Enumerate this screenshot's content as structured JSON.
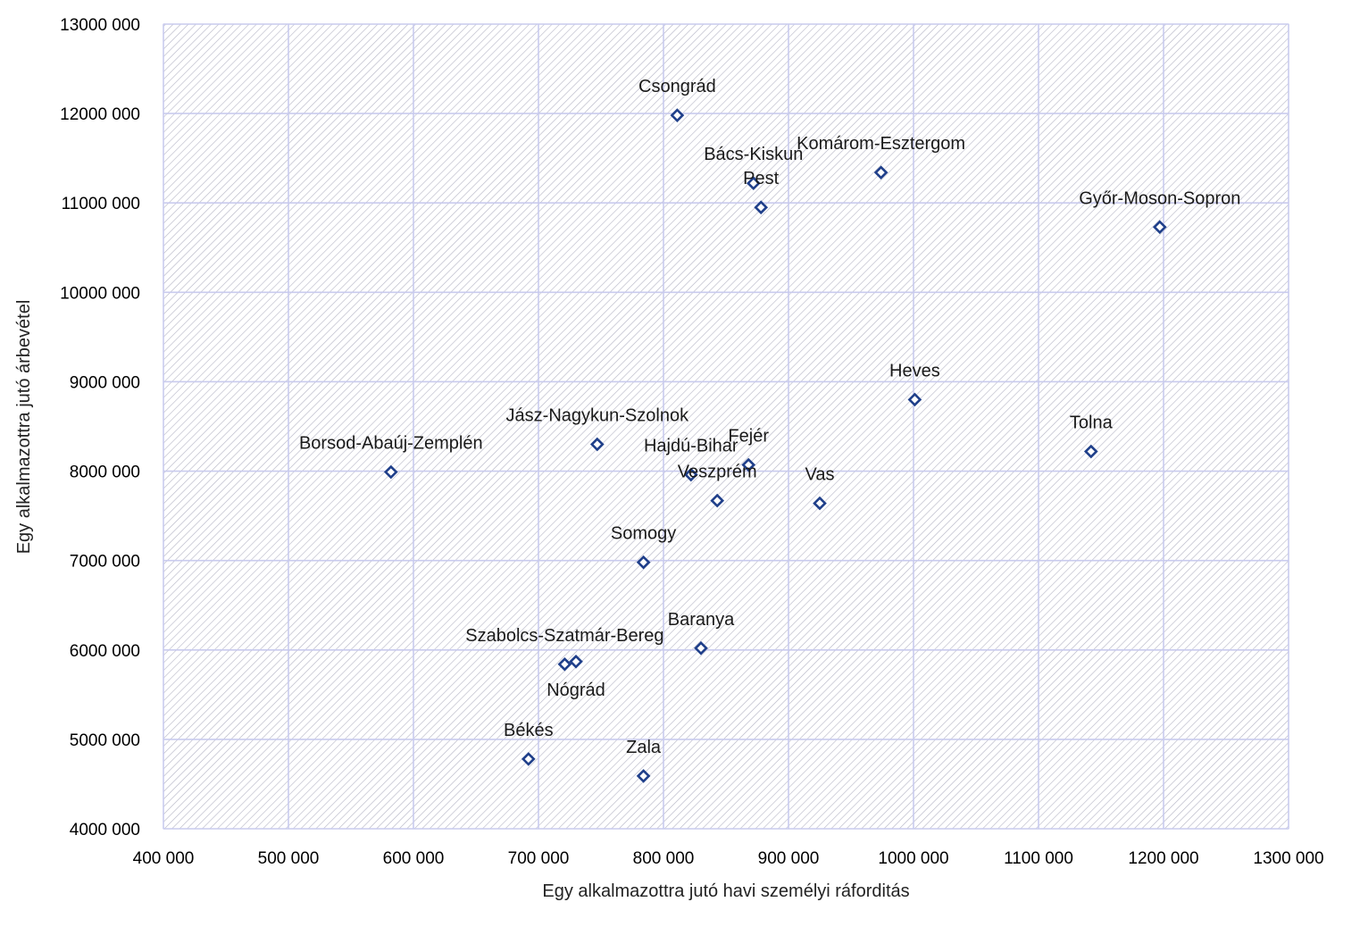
{
  "colors": {
    "marker": "#1F3F8A",
    "grid": "#C9CBEE",
    "hatch": "#B4B4C4",
    "plot_border": "#C9CBEE"
  },
  "chart_data": {
    "type": "scatter",
    "title": "",
    "xlabel": "Egy alkalmazottra jutó havi személyi ráforditás",
    "ylabel": "Egy alkalmazottra jutó árbevétel",
    "xlim": [
      400000,
      1300000
    ],
    "ylim": [
      4000000,
      13000000
    ],
    "x_ticks": [
      400000,
      500000,
      600000,
      700000,
      800000,
      900000,
      1000000,
      1100000,
      1200000,
      1300000
    ],
    "y_ticks": [
      4000000,
      5000000,
      6000000,
      7000000,
      8000000,
      9000000,
      10000000,
      11000000,
      12000000,
      13000000
    ],
    "x_tick_labels": [
      "400 000",
      "500 000",
      "600 000",
      "700 000",
      "800 000",
      "900 000",
      "1000 000",
      "1100 000",
      "1200 000",
      "1300 000"
    ],
    "y_tick_labels": [
      "4000 000",
      "5000 000",
      "6000 000",
      "7000 000",
      "8000 000",
      "9000 000",
      "10000 000",
      "11000 000",
      "12000 000",
      "13000 000"
    ],
    "grid": true,
    "legend": "none",
    "marker": "hollow-diamond",
    "points": [
      {
        "label": "Csongrád",
        "x": 811000,
        "y": 11980000,
        "label_pos": "above"
      },
      {
        "label": "Bács-Kiskun",
        "x": 872000,
        "y": 11220000,
        "label_pos": "above"
      },
      {
        "label": "Pest",
        "x": 878000,
        "y": 10950000,
        "label_pos": "above"
      },
      {
        "label": "Komárom-Esztergom",
        "x": 974000,
        "y": 11340000,
        "label_pos": "above"
      },
      {
        "label": "Győr-Moson-Sopron",
        "x": 1197000,
        "y": 10730000,
        "label_pos": "above"
      },
      {
        "label": "Heves",
        "x": 1001000,
        "y": 8800000,
        "label_pos": "above"
      },
      {
        "label": "Tolna",
        "x": 1142000,
        "y": 8220000,
        "label_pos": "above"
      },
      {
        "label": "Jász-Nagykun-Szolnok",
        "x": 747000,
        "y": 8300000,
        "label_pos": "above"
      },
      {
        "label": "Borsod-Abaúj-Zemplén",
        "x": 582000,
        "y": 7990000,
        "label_pos": "above"
      },
      {
        "label": "Fejér",
        "x": 868000,
        "y": 8070000,
        "label_pos": "above"
      },
      {
        "label": "Hajdú-Bihar",
        "x": 822000,
        "y": 7960000,
        "label_pos": "above"
      },
      {
        "label": "Veszprém",
        "x": 843000,
        "y": 7670000,
        "label_pos": "above"
      },
      {
        "label": "Vas",
        "x": 925000,
        "y": 7640000,
        "label_pos": "above"
      },
      {
        "label": "Somogy",
        "x": 784000,
        "y": 6980000,
        "label_pos": "above"
      },
      {
        "label": "Baranya",
        "x": 830000,
        "y": 6020000,
        "label_pos": "above"
      },
      {
        "label": "Szabolcs-Szatmár-Bereg",
        "x": 721000,
        "y": 5840000,
        "label_pos": "above"
      },
      {
        "label": "Nógrád",
        "x": 730000,
        "y": 5870000,
        "label_pos": "below"
      },
      {
        "label": "Békés",
        "x": 692000,
        "y": 4780000,
        "label_pos": "above"
      },
      {
        "label": "Zala",
        "x": 784000,
        "y": 4590000,
        "label_pos": "above"
      }
    ]
  }
}
